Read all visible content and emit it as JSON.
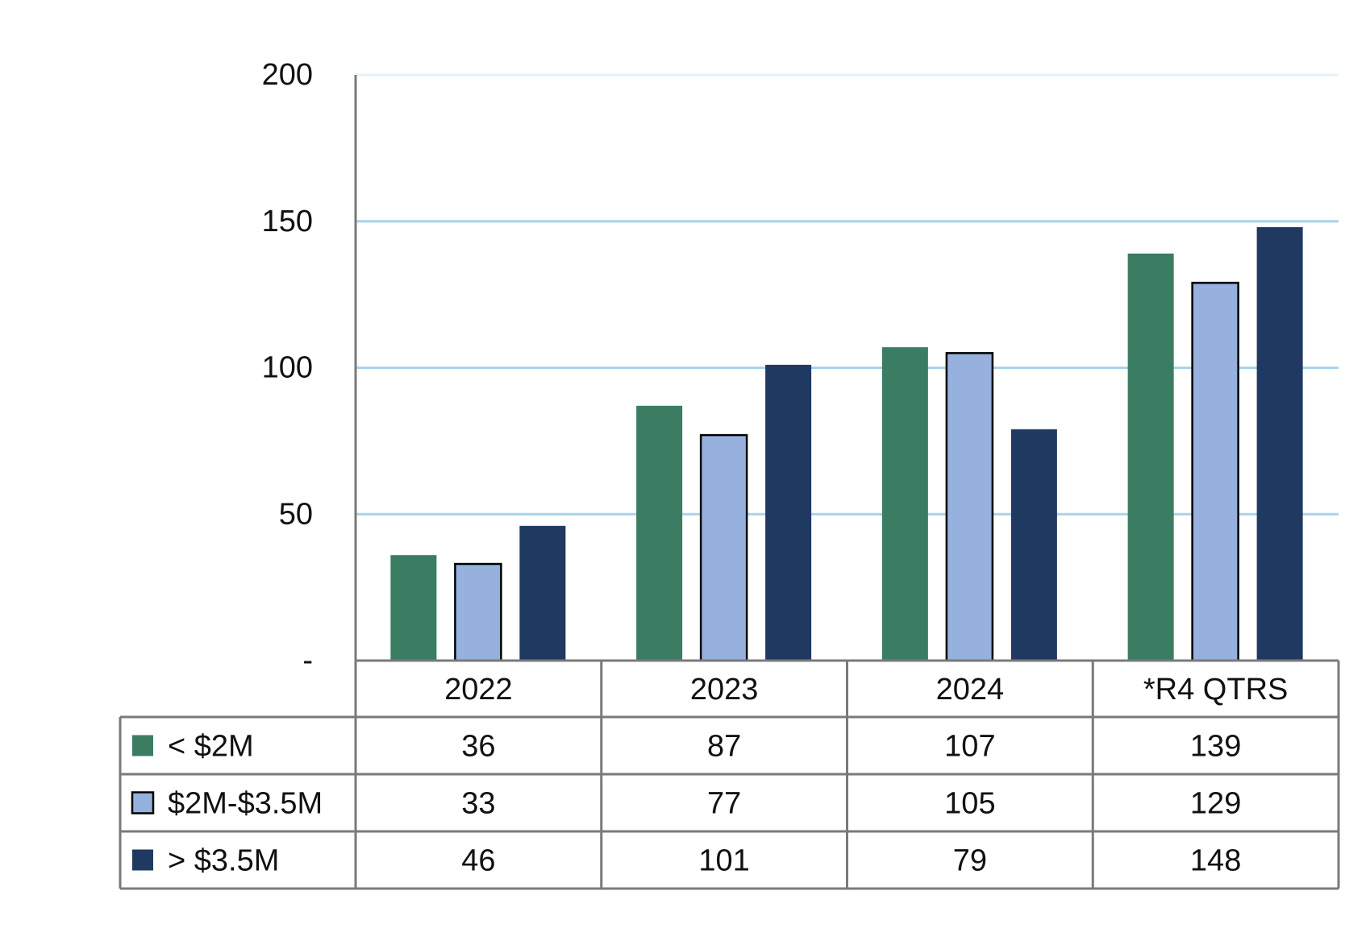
{
  "chart_data": {
    "type": "bar",
    "title": "",
    "xlabel": "",
    "ylabel": "",
    "categories": [
      "2022",
      "2023",
      "2024",
      "*R4 QTRS"
    ],
    "series": [
      {
        "name": "< $2M",
        "values": [
          36,
          87,
          107,
          139
        ]
      },
      {
        "name": "$2M-$3.5M",
        "values": [
          33,
          77,
          105,
          129
        ]
      },
      {
        "name": "> $3.5M",
        "values": [
          46,
          101,
          79,
          148
        ]
      }
    ],
    "ylim": [
      0,
      200
    ],
    "yticks": [
      0,
      50,
      100,
      150,
      200
    ],
    "ytick_labels": [
      "-",
      "50",
      "100",
      "150",
      "200"
    ],
    "grid": true,
    "legend": "data-table-rows",
    "data_table": true,
    "colors": {
      "series": [
        "#3b7d62",
        "#96b1de",
        "#203961"
      ],
      "series_outline": [
        null,
        "#000000",
        null
      ],
      "gridline": "#a8d3ea",
      "top_gridline": "#e6f2f9",
      "axis": "#7a7a7a",
      "table_border": "#7a7a7a"
    }
  }
}
